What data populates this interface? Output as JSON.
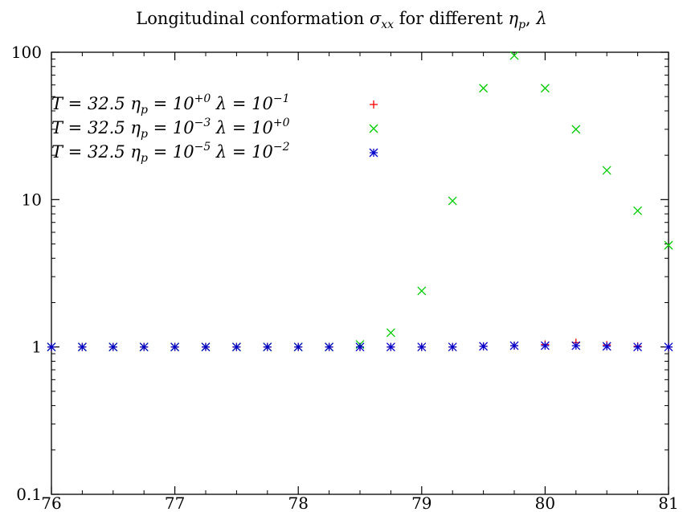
{
  "chart_data": {
    "type": "scatter",
    "title": "Longitudinal conformation σxx for different ηp, λ",
    "xlabel": "",
    "ylabel": "",
    "xlim": [
      76,
      81
    ],
    "ylim": [
      0.1,
      100
    ],
    "yscale": "log",
    "grid": false,
    "legend_position": "top-left",
    "x_ticks": [
      "76",
      "77",
      "78",
      "79",
      "80",
      "81"
    ],
    "y_ticks": [
      "0.1",
      "1",
      "10",
      "100"
    ],
    "series": [
      {
        "name": "T = 32.5 ηp = 10^+0 λ = 10^-1",
        "marker": "plus",
        "color": "#ff0000",
        "x": [
          76,
          76.25,
          76.5,
          76.75,
          77,
          77.25,
          77.5,
          77.75,
          78,
          78.25,
          78.5,
          78.75,
          79,
          79.25,
          79.5,
          79.75,
          80,
          80.25,
          80.5,
          80.75,
          81
        ],
        "y": [
          1,
          1,
          1,
          1,
          1,
          1,
          1,
          1,
          1,
          1,
          1,
          1,
          1,
          1,
          1.01,
          1.02,
          1.04,
          1.07,
          1.03,
          1.01,
          1
        ]
      },
      {
        "name": "T = 32.5 ηp = 10^-3 λ = 10^+0",
        "marker": "cross",
        "color": "#00cc00",
        "x": [
          76,
          76.25,
          76.5,
          76.75,
          77,
          77.25,
          77.5,
          77.75,
          78,
          78.25,
          78.5,
          78.75,
          79,
          79.25,
          79.5,
          79.75,
          80,
          80.25,
          80.5,
          80.75,
          81
        ],
        "y": [
          1,
          1,
          1,
          1,
          1,
          1,
          1,
          1,
          1,
          1,
          1.04,
          1.25,
          2.4,
          9.8,
          57,
          95,
          57,
          30,
          15.8,
          8.4,
          4.9
        ]
      },
      {
        "name": "T = 32.5 ηp = 10^-5 λ = 10^-2",
        "marker": "star",
        "color": "#0000cc",
        "x": [
          76,
          76.25,
          76.5,
          76.75,
          77,
          77.25,
          77.5,
          77.75,
          78,
          78.25,
          78.5,
          78.75,
          79,
          79.25,
          79.5,
          79.75,
          80,
          80.25,
          80.5,
          80.75,
          81
        ],
        "y": [
          1,
          1,
          1,
          1,
          1,
          1,
          1,
          1,
          1,
          1,
          1,
          1,
          1,
          1,
          1.01,
          1.02,
          1.02,
          1.02,
          1.01,
          1,
          1
        ]
      }
    ]
  }
}
